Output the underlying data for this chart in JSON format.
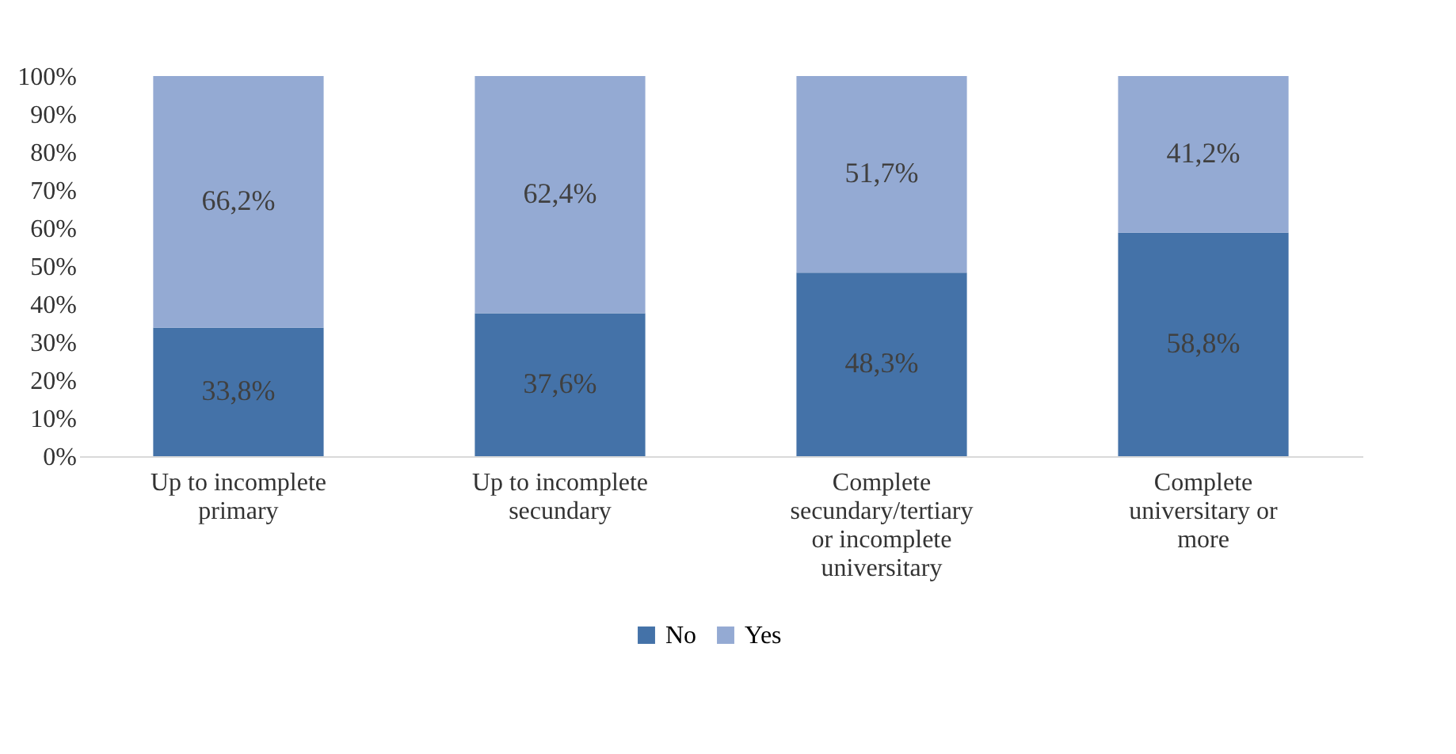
{
  "chart_data": {
    "type": "bar",
    "stacked": true,
    "categories": [
      "Up to incomplete primary",
      "Up to incomplete secundary",
      "Complete secundary/tertiary or incomplete universitary",
      "Complete universitary or more"
    ],
    "series": [
      {
        "name": "No",
        "color": "#4472a8",
        "values": [
          33.8,
          37.6,
          48.3,
          58.8
        ],
        "value_labels": [
          "33,8%",
          "37,6%",
          "48,3%",
          "58,8%"
        ]
      },
      {
        "name": "Yes",
        "color": "#94aad3",
        "values": [
          66.2,
          62.4,
          51.7,
          41.2
        ],
        "value_labels": [
          "66,2%",
          "62,4%",
          "51,7%",
          "41,2%"
        ]
      }
    ],
    "ylim": [
      0,
      100
    ],
    "yticks": [
      {
        "value": 0,
        "label": "0%"
      },
      {
        "value": 10,
        "label": "10%"
      },
      {
        "value": 20,
        "label": "20%"
      },
      {
        "value": 30,
        "label": "30%"
      },
      {
        "value": 40,
        "label": "40%"
      },
      {
        "value": 50,
        "label": "50%"
      },
      {
        "value": 60,
        "label": "60%"
      },
      {
        "value": 70,
        "label": "70%"
      },
      {
        "value": 80,
        "label": "80%"
      },
      {
        "value": 90,
        "label": "90%"
      },
      {
        "value": 100,
        "label": "100%"
      }
    ],
    "grid": false,
    "legend": "bottom"
  }
}
